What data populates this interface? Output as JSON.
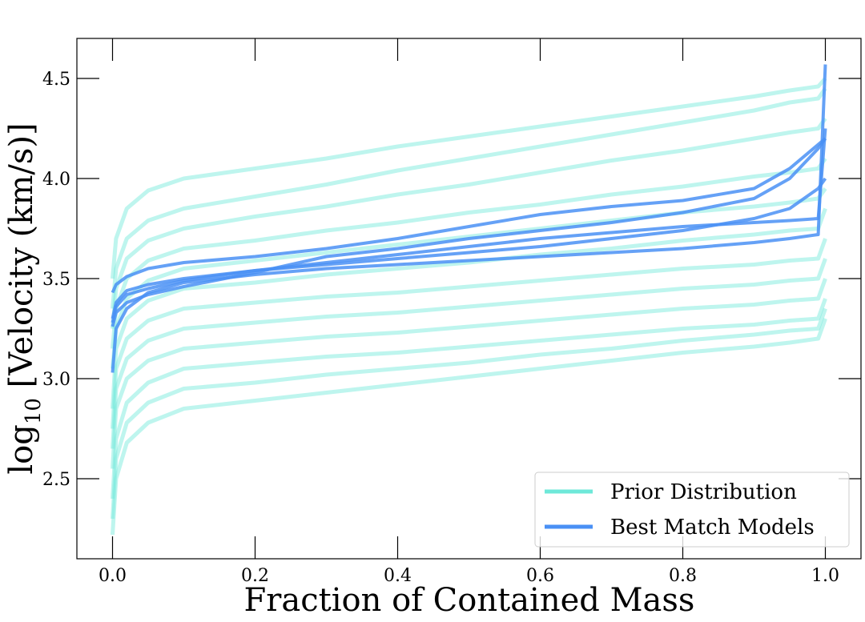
{
  "chart_data": {
    "type": "line",
    "xlabel": "Fraction of Contained Mass",
    "ylabel": [
      "log",
      "10",
      " [Velocity (km/s)]"
    ],
    "x": [
      0,
      0.005,
      0.02,
      0.05,
      0.1,
      0.2,
      0.3,
      0.4,
      0.5,
      0.6,
      0.7,
      0.8,
      0.9,
      0.95,
      0.99,
      1.0
    ],
    "xlim": [
      -0.05,
      1.05
    ],
    "ylim": [
      2.1,
      4.7
    ],
    "xticks": [
      {
        "value": 0,
        "label": "0.0"
      },
      0.2,
      0.4,
      0.6,
      0.8,
      {
        "value": 1,
        "label": "1.0"
      }
    ],
    "yticks": [
      2.5,
      {
        "value": 3,
        "label": "3.0"
      },
      3.5,
      {
        "value": 4,
        "label": "4.0"
      },
      4.5
    ],
    "legend": "lower right",
    "series": [
      {
        "name": "Prior Distribution",
        "color": "#6ee8d9",
        "values": [
          [
            3.5,
            3.7,
            3.85,
            3.94,
            4.0,
            4.05,
            4.1,
            4.16,
            4.21,
            4.26,
            4.31,
            4.36,
            4.41,
            4.44,
            4.46,
            4.5
          ],
          [
            3.35,
            3.55,
            3.7,
            3.79,
            3.85,
            3.91,
            3.97,
            4.04,
            4.1,
            4.16,
            4.22,
            4.28,
            4.34,
            4.38,
            4.4,
            4.45
          ],
          [
            3.25,
            3.45,
            3.6,
            3.69,
            3.75,
            3.81,
            3.86,
            3.92,
            3.97,
            4.03,
            4.09,
            4.14,
            4.2,
            4.23,
            4.25,
            4.3
          ],
          [
            3.15,
            3.35,
            3.5,
            3.59,
            3.65,
            3.69,
            3.74,
            3.78,
            3.83,
            3.87,
            3.92,
            3.96,
            4.01,
            4.03,
            4.05,
            4.1
          ],
          [
            3.05,
            3.25,
            3.4,
            3.49,
            3.55,
            3.59,
            3.63,
            3.67,
            3.71,
            3.75,
            3.79,
            3.83,
            3.86,
            3.88,
            3.9,
            3.95
          ],
          [
            2.85,
            3.15,
            3.3,
            3.39,
            3.45,
            3.48,
            3.52,
            3.55,
            3.58,
            3.62,
            3.65,
            3.69,
            3.72,
            3.74,
            3.75,
            3.85
          ],
          [
            2.75,
            3.05,
            3.2,
            3.29,
            3.35,
            3.38,
            3.41,
            3.43,
            3.46,
            3.49,
            3.52,
            3.55,
            3.57,
            3.59,
            3.6,
            3.7
          ],
          [
            2.65,
            2.95,
            3.1,
            3.19,
            3.25,
            3.28,
            3.31,
            3.33,
            3.36,
            3.39,
            3.42,
            3.45,
            3.47,
            3.49,
            3.5,
            3.6
          ],
          [
            2.55,
            2.85,
            3.0,
            3.09,
            3.15,
            3.18,
            3.21,
            3.23,
            3.26,
            3.29,
            3.32,
            3.35,
            3.37,
            3.39,
            3.4,
            3.5
          ],
          [
            2.4,
            2.7,
            2.88,
            2.98,
            3.05,
            3.08,
            3.11,
            3.13,
            3.16,
            3.19,
            3.22,
            3.25,
            3.27,
            3.29,
            3.3,
            3.4
          ],
          [
            2.3,
            2.6,
            2.78,
            2.88,
            2.95,
            2.98,
            3.02,
            3.05,
            3.08,
            3.12,
            3.15,
            3.19,
            3.22,
            3.24,
            3.25,
            3.35
          ],
          [
            2.22,
            2.5,
            2.68,
            2.78,
            2.85,
            2.89,
            2.93,
            2.97,
            3.01,
            3.05,
            3.09,
            3.13,
            3.16,
            3.18,
            3.2,
            3.3
          ]
        ]
      },
      {
        "name": "Best Match Models",
        "color": "#4a90f5",
        "values": [
          [
            3.43,
            3.47,
            3.51,
            3.55,
            3.58,
            3.61,
            3.65,
            3.7,
            3.76,
            3.82,
            3.86,
            3.89,
            3.95,
            4.05,
            4.17,
            4.2
          ],
          [
            3.3,
            3.38,
            3.44,
            3.47,
            3.5,
            3.54,
            3.58,
            3.62,
            3.66,
            3.7,
            3.73,
            3.76,
            3.78,
            3.79,
            3.8,
            4.25
          ],
          [
            3.26,
            3.33,
            3.38,
            3.42,
            3.46,
            3.53,
            3.61,
            3.65,
            3.7,
            3.74,
            3.78,
            3.83,
            3.9,
            4.0,
            4.15,
            4.2
          ],
          [
            3.03,
            3.25,
            3.35,
            3.43,
            3.48,
            3.52,
            3.55,
            3.57,
            3.59,
            3.61,
            3.63,
            3.65,
            3.68,
            3.7,
            3.72,
            4.57
          ],
          [
            3.28,
            3.36,
            3.42,
            3.45,
            3.49,
            3.54,
            3.57,
            3.6,
            3.63,
            3.66,
            3.7,
            3.74,
            3.8,
            3.85,
            3.95,
            4.0
          ]
        ]
      }
    ]
  }
}
